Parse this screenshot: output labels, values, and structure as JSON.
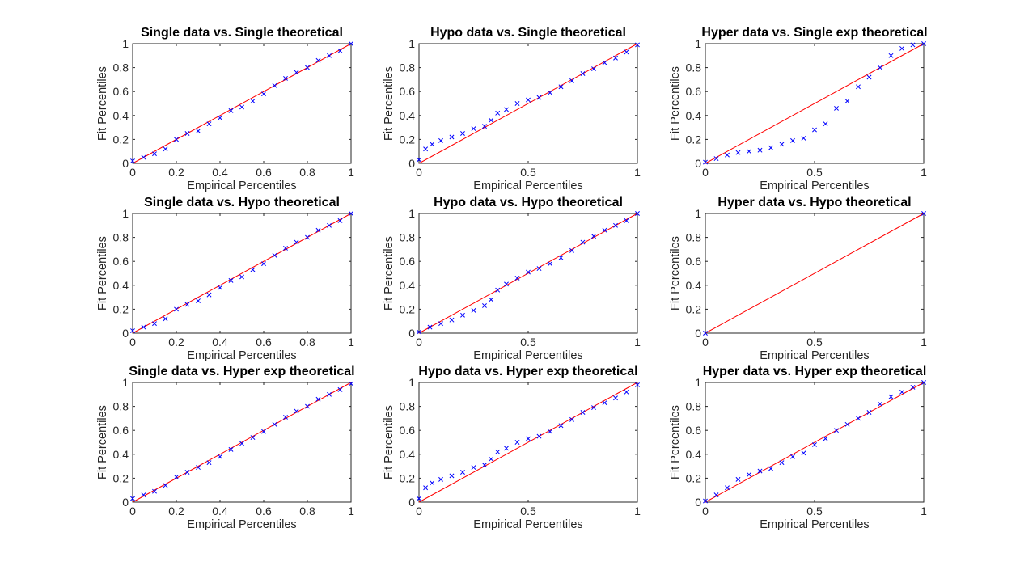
{
  "colors": {
    "reference_line": "#ff0000",
    "data_points": "#0000ff",
    "axes": "#262626",
    "background": "#ffffff"
  },
  "chart_data": [
    {
      "type": "scatter",
      "title": "Single data vs. Single theoretical",
      "xlabel": "Empirical Percentiles",
      "ylabel": "Fit Percentiles",
      "xlim": [
        0,
        1
      ],
      "ylim": [
        0,
        1
      ],
      "xticks": [
        "0",
        "0.2",
        "0.4",
        "0.6",
        "0.8",
        "1"
      ],
      "yticks": [
        "0",
        "0.2",
        "0.4",
        "0.6",
        "0.8",
        "1"
      ],
      "grid": false,
      "reference_line": {
        "x": [
          0,
          1
        ],
        "y": [
          0,
          1
        ],
        "color": "#ff0000"
      },
      "points": {
        "marker": "x",
        "color": "#0000ff",
        "x": [
          0,
          0.05,
          0.1,
          0.15,
          0.2,
          0.25,
          0.3,
          0.35,
          0.4,
          0.45,
          0.5,
          0.55,
          0.6,
          0.65,
          0.7,
          0.75,
          0.8,
          0.85,
          0.9,
          0.95,
          1
        ],
        "y": [
          0.02,
          0.05,
          0.08,
          0.12,
          0.2,
          0.25,
          0.27,
          0.33,
          0.38,
          0.44,
          0.47,
          0.52,
          0.58,
          0.65,
          0.71,
          0.76,
          0.8,
          0.86,
          0.9,
          0.94,
          1
        ]
      }
    },
    {
      "type": "scatter",
      "title": "Hypo data vs. Single theoretical",
      "xlabel": "Empirical Percentiles",
      "ylabel": "Fit Percentiles",
      "xlim": [
        0,
        1
      ],
      "ylim": [
        0,
        1
      ],
      "xticks": [
        "0",
        "0.5",
        "1"
      ],
      "yticks": [
        "0",
        "0.2",
        "0.4",
        "0.6",
        "0.8",
        "1"
      ],
      "grid": false,
      "reference_line": {
        "x": [
          0,
          1
        ],
        "y": [
          0,
          1
        ],
        "color": "#ff0000"
      },
      "points": {
        "marker": "x",
        "color": "#0000ff",
        "x": [
          0,
          0.03,
          0.06,
          0.1,
          0.15,
          0.2,
          0.25,
          0.3,
          0.33,
          0.36,
          0.4,
          0.45,
          0.5,
          0.55,
          0.6,
          0.65,
          0.7,
          0.75,
          0.8,
          0.85,
          0.9,
          0.95,
          1
        ],
        "y": [
          0.03,
          0.12,
          0.16,
          0.19,
          0.22,
          0.25,
          0.29,
          0.31,
          0.36,
          0.42,
          0.45,
          0.5,
          0.53,
          0.55,
          0.59,
          0.64,
          0.69,
          0.75,
          0.79,
          0.84,
          0.88,
          0.93,
          0.99
        ]
      }
    },
    {
      "type": "scatter",
      "title": "Hyper data vs. Single exp theoretical",
      "xlabel": "Empirical Percentiles",
      "ylabel": "Fit Percentiles",
      "xlim": [
        0,
        1
      ],
      "ylim": [
        0,
        1
      ],
      "xticks": [
        "0",
        "0.5",
        "1"
      ],
      "yticks": [
        "0",
        "0.2",
        "0.4",
        "0.6",
        "0.8",
        "1"
      ],
      "grid": false,
      "reference_line": {
        "x": [
          0,
          1
        ],
        "y": [
          0,
          1
        ],
        "color": "#ff0000"
      },
      "points": {
        "marker": "x",
        "color": "#0000ff",
        "x": [
          0,
          0.05,
          0.1,
          0.15,
          0.2,
          0.25,
          0.3,
          0.35,
          0.4,
          0.45,
          0.5,
          0.55,
          0.6,
          0.65,
          0.7,
          0.75,
          0.8,
          0.85,
          0.9,
          0.95,
          1
        ],
        "y": [
          0.01,
          0.04,
          0.07,
          0.09,
          0.1,
          0.11,
          0.13,
          0.16,
          0.19,
          0.21,
          0.28,
          0.33,
          0.46,
          0.52,
          0.64,
          0.72,
          0.8,
          0.9,
          0.96,
          0.99,
          1
        ]
      }
    },
    {
      "type": "scatter",
      "title": "Single data vs. Hypo theoretical",
      "xlabel": "Empirical Percentiles",
      "ylabel": "Fit Percentiles",
      "xlim": [
        0,
        1
      ],
      "ylim": [
        0,
        1
      ],
      "xticks": [
        "0",
        "0.2",
        "0.4",
        "0.6",
        "0.8",
        "1"
      ],
      "yticks": [
        "0",
        "0.2",
        "0.4",
        "0.6",
        "0.8",
        "1"
      ],
      "grid": false,
      "reference_line": {
        "x": [
          0,
          1
        ],
        "y": [
          0,
          1
        ],
        "color": "#ff0000"
      },
      "points": {
        "marker": "x",
        "color": "#0000ff",
        "x": [
          0,
          0.05,
          0.1,
          0.15,
          0.2,
          0.25,
          0.3,
          0.35,
          0.4,
          0.45,
          0.5,
          0.55,
          0.6,
          0.65,
          0.7,
          0.75,
          0.8,
          0.85,
          0.9,
          0.95,
          1
        ],
        "y": [
          0.02,
          0.05,
          0.08,
          0.12,
          0.2,
          0.24,
          0.27,
          0.32,
          0.38,
          0.44,
          0.47,
          0.53,
          0.58,
          0.65,
          0.71,
          0.76,
          0.8,
          0.86,
          0.9,
          0.94,
          1
        ]
      }
    },
    {
      "type": "scatter",
      "title": "Hypo data vs. Hypo theoretical",
      "xlabel": "Empirical Percentiles",
      "ylabel": "Fit Percentiles",
      "xlim": [
        0,
        1
      ],
      "ylim": [
        0,
        1
      ],
      "xticks": [
        "0",
        "0.5",
        "1"
      ],
      "yticks": [
        "0",
        "0.2",
        "0.4",
        "0.6",
        "0.8",
        "1"
      ],
      "grid": false,
      "reference_line": {
        "x": [
          0,
          1
        ],
        "y": [
          0,
          1
        ],
        "color": "#ff0000"
      },
      "points": {
        "marker": "x",
        "color": "#0000ff",
        "x": [
          0,
          0.05,
          0.1,
          0.15,
          0.2,
          0.25,
          0.3,
          0.33,
          0.36,
          0.4,
          0.45,
          0.5,
          0.55,
          0.6,
          0.65,
          0.7,
          0.75,
          0.8,
          0.85,
          0.9,
          0.95,
          1
        ],
        "y": [
          0.01,
          0.05,
          0.08,
          0.11,
          0.15,
          0.19,
          0.23,
          0.28,
          0.36,
          0.41,
          0.46,
          0.51,
          0.54,
          0.58,
          0.63,
          0.69,
          0.76,
          0.81,
          0.86,
          0.9,
          0.94,
          1
        ]
      }
    },
    {
      "type": "scatter",
      "title": "Hyper data vs. Hypo theoretical",
      "xlabel": "Empirical Percentiles",
      "ylabel": "Fit Percentiles",
      "xlim": [
        0,
        1
      ],
      "ylim": [
        0,
        1
      ],
      "xticks": [
        "0",
        "0.5",
        "1"
      ],
      "yticks": [
        "0",
        "0.2",
        "0.4",
        "0.6",
        "0.8",
        "1"
      ],
      "grid": false,
      "reference_line": {
        "x": [
          0,
          1
        ],
        "y": [
          0,
          1
        ],
        "color": "#ff0000"
      },
      "points": {
        "marker": "x",
        "color": "#0000ff",
        "x": [
          0,
          1
        ],
        "y": [
          0,
          1
        ]
      }
    },
    {
      "type": "scatter",
      "title": "Single data vs. Hyper exp theoretical",
      "xlabel": "Empirical Percentiles",
      "ylabel": "Fit Percentiles",
      "xlim": [
        0,
        1
      ],
      "ylim": [
        0,
        1
      ],
      "xticks": [
        "0",
        "0.2",
        "0.4",
        "0.6",
        "0.8",
        "1"
      ],
      "yticks": [
        "0",
        "0.2",
        "0.4",
        "0.6",
        "0.8",
        "1"
      ],
      "grid": false,
      "reference_line": {
        "x": [
          0,
          1
        ],
        "y": [
          0,
          1
        ],
        "color": "#ff0000"
      },
      "points": {
        "marker": "x",
        "color": "#0000ff",
        "x": [
          0,
          0.05,
          0.1,
          0.15,
          0.2,
          0.25,
          0.3,
          0.35,
          0.4,
          0.45,
          0.5,
          0.55,
          0.6,
          0.65,
          0.7,
          0.75,
          0.8,
          0.85,
          0.9,
          0.95,
          1
        ],
        "y": [
          0.03,
          0.06,
          0.09,
          0.14,
          0.21,
          0.25,
          0.29,
          0.33,
          0.38,
          0.44,
          0.49,
          0.54,
          0.59,
          0.65,
          0.71,
          0.76,
          0.8,
          0.86,
          0.9,
          0.94,
          0.99
        ]
      }
    },
    {
      "type": "scatter",
      "title": "Hypo data vs. Hyper exp theoretical",
      "xlabel": "Empirical Percentiles",
      "ylabel": "Fit Percentiles",
      "xlim": [
        0,
        1
      ],
      "ylim": [
        0,
        1
      ],
      "xticks": [
        "0",
        "0.5",
        "1"
      ],
      "yticks": [
        "0",
        "0.2",
        "0.4",
        "0.6",
        "0.8",
        "1"
      ],
      "grid": false,
      "reference_line": {
        "x": [
          0,
          1
        ],
        "y": [
          0,
          1
        ],
        "color": "#ff0000"
      },
      "points": {
        "marker": "x",
        "color": "#0000ff",
        "x": [
          0,
          0.03,
          0.06,
          0.1,
          0.15,
          0.2,
          0.25,
          0.3,
          0.33,
          0.36,
          0.4,
          0.45,
          0.5,
          0.55,
          0.6,
          0.65,
          0.7,
          0.75,
          0.8,
          0.85,
          0.9,
          0.95,
          1
        ],
        "y": [
          0.03,
          0.12,
          0.16,
          0.19,
          0.22,
          0.25,
          0.29,
          0.31,
          0.36,
          0.42,
          0.45,
          0.5,
          0.53,
          0.55,
          0.59,
          0.64,
          0.69,
          0.75,
          0.79,
          0.83,
          0.87,
          0.92,
          0.98
        ]
      }
    },
    {
      "type": "scatter",
      "title": "Hyper data vs. Hyper exp theoretical",
      "xlabel": "Empirical Percentiles",
      "ylabel": "Fit Percentiles",
      "xlim": [
        0,
        1
      ],
      "ylim": [
        0,
        1
      ],
      "xticks": [
        "0",
        "0.5",
        "1"
      ],
      "yticks": [
        "0",
        "0.2",
        "0.4",
        "0.6",
        "0.8",
        "1"
      ],
      "grid": false,
      "reference_line": {
        "x": [
          0,
          1
        ],
        "y": [
          0,
          1
        ],
        "color": "#ff0000"
      },
      "points": {
        "marker": "x",
        "color": "#0000ff",
        "x": [
          0,
          0.05,
          0.1,
          0.15,
          0.2,
          0.25,
          0.3,
          0.35,
          0.4,
          0.45,
          0.5,
          0.55,
          0.6,
          0.65,
          0.7,
          0.75,
          0.8,
          0.85,
          0.9,
          0.95,
          1
        ],
        "y": [
          0.01,
          0.06,
          0.12,
          0.19,
          0.23,
          0.26,
          0.28,
          0.33,
          0.38,
          0.41,
          0.48,
          0.53,
          0.6,
          0.65,
          0.7,
          0.75,
          0.82,
          0.88,
          0.92,
          0.96,
          1
        ]
      }
    }
  ]
}
